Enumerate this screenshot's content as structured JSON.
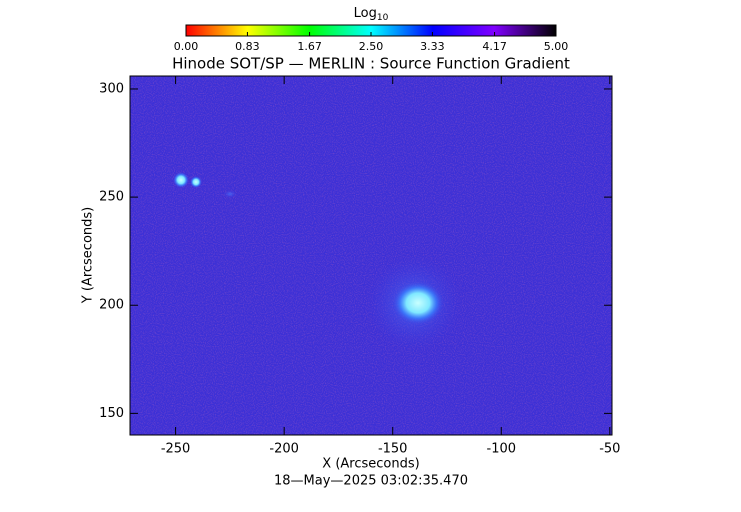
{
  "chart_data": {
    "type": "image",
    "title": "Hinode SOT/SP — MERLIN : Source Function Gradient",
    "x_label": "X (Arcseconds)",
    "y_label": "Y (Arcseconds)",
    "timestamp": "18—May—2025 03:02:35.470",
    "xlim": [
      -271,
      -49
    ],
    "ylim": [
      140,
      306
    ],
    "xticks": [
      -250,
      -200,
      -150,
      -100,
      -50
    ],
    "yticks": [
      150,
      200,
      250,
      300
    ],
    "colorbar": {
      "label": "Log",
      "label_subscript": "10",
      "lim": [
        0,
        5
      ],
      "colors": [
        "#ff0000",
        "#ffff00",
        "#00ff00",
        "#00ffff",
        "#0000ff",
        "#8000ff",
        "#000000"
      ],
      "ticks": [
        {
          "value": 0,
          "label": "0.00"
        },
        {
          "value": 0.83,
          "label": "0.83"
        },
        {
          "value": 1.67,
          "label": "1.67"
        },
        {
          "value": 2.5,
          "label": "2.50"
        },
        {
          "value": 3.33,
          "label": "3.33"
        },
        {
          "value": 4.17,
          "label": "4.17"
        },
        {
          "value": 5,
          "label": "5.00"
        }
      ]
    }
  }
}
